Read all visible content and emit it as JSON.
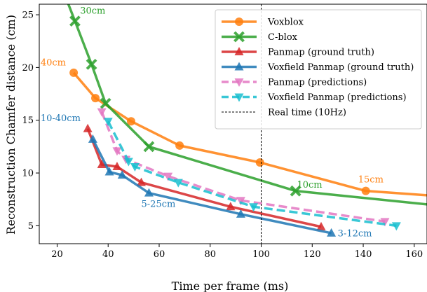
{
  "chart_data": {
    "type": "line",
    "xlabel": "Time per frame (ms)",
    "ylabel": "Reconstruction Chamfer distance (cm)",
    "xlim": [
      13,
      165
    ],
    "ylim": [
      3.3,
      26
    ],
    "xticks": [
      20,
      40,
      60,
      80,
      100,
      120,
      140,
      160
    ],
    "yticks": [
      5,
      10,
      15,
      20,
      25
    ],
    "grid": false,
    "legend_position": "top-right",
    "series": [
      {
        "name": "Voxblox",
        "color": "#ff7f0e",
        "dashed": false,
        "marker": "circle",
        "x": [
          26.5,
          35,
          49,
          68,
          99.5,
          141,
          170
        ],
        "y": [
          19.5,
          17.1,
          14.9,
          12.6,
          11.0,
          8.3,
          7.8
        ]
      },
      {
        "name": "C-blox",
        "color": "#2ca02c",
        "dashed": false,
        "marker": "x",
        "x": [
          22,
          27,
          33.5,
          39,
          56,
          113.5,
          170
        ],
        "y": [
          27.5,
          24.4,
          20.3,
          16.6,
          12.5,
          8.3,
          6.9
        ]
      },
      {
        "name": "Panmap (ground truth)",
        "color": "#d62728",
        "dashed": false,
        "marker": "triangle-up",
        "x": [
          32,
          37.5,
          43.5,
          53,
          88,
          123.5
        ],
        "y": [
          14.2,
          10.8,
          10.6,
          9.1,
          6.8,
          4.9
        ]
      },
      {
        "name": "Voxfield Panmap (ground truth)",
        "color": "#1f77b4",
        "dashed": false,
        "marker": "triangle-up",
        "x": [
          34,
          40.5,
          45.5,
          56,
          92,
          127.5
        ],
        "y": [
          13.2,
          10.1,
          9.8,
          8.1,
          6.1,
          4.3
        ]
      },
      {
        "name": "Panmap (predictions)",
        "color": "#e377c2",
        "dashed": true,
        "marker": "triangle-down",
        "x": [
          37.5,
          43.5,
          47,
          63.5,
          92,
          148.5
        ],
        "y": [
          15.8,
          12.1,
          11.3,
          9.7,
          7.4,
          5.4
        ]
      },
      {
        "name": "Voxfield Panmap (predictions)",
        "color": "#17becf",
        "dashed": true,
        "marker": "triangle-down",
        "x": [
          40,
          48,
          50.5,
          67.5,
          97,
          153
        ],
        "y": [
          14.9,
          11.1,
          10.6,
          9.1,
          6.8,
          5.0
        ]
      }
    ],
    "reference_line": {
      "name": "Real time (10Hz)",
      "x": 100,
      "color": "#000000"
    },
    "annotations": [
      {
        "text": "30cm",
        "x": 29,
        "y": 25.1,
        "color": "#2ca02c"
      },
      {
        "text": "40cm",
        "x": 13.5,
        "y": 20.2,
        "color": "#ff7f0e"
      },
      {
        "text": "10-40cm",
        "x": 13.5,
        "y": 14.9,
        "color": "#1f77b4"
      },
      {
        "text": "5-25cm",
        "x": 53,
        "y": 6.8,
        "color": "#1f77b4"
      },
      {
        "text": "10cm",
        "x": 114,
        "y": 8.6,
        "color": "#2ca02c"
      },
      {
        "text": "15cm",
        "x": 138,
        "y": 9.1,
        "color": "#ff7f0e"
      },
      {
        "text": "3-12cm",
        "x": 130,
        "y": 4.0,
        "color": "#1f77b4"
      }
    ]
  }
}
